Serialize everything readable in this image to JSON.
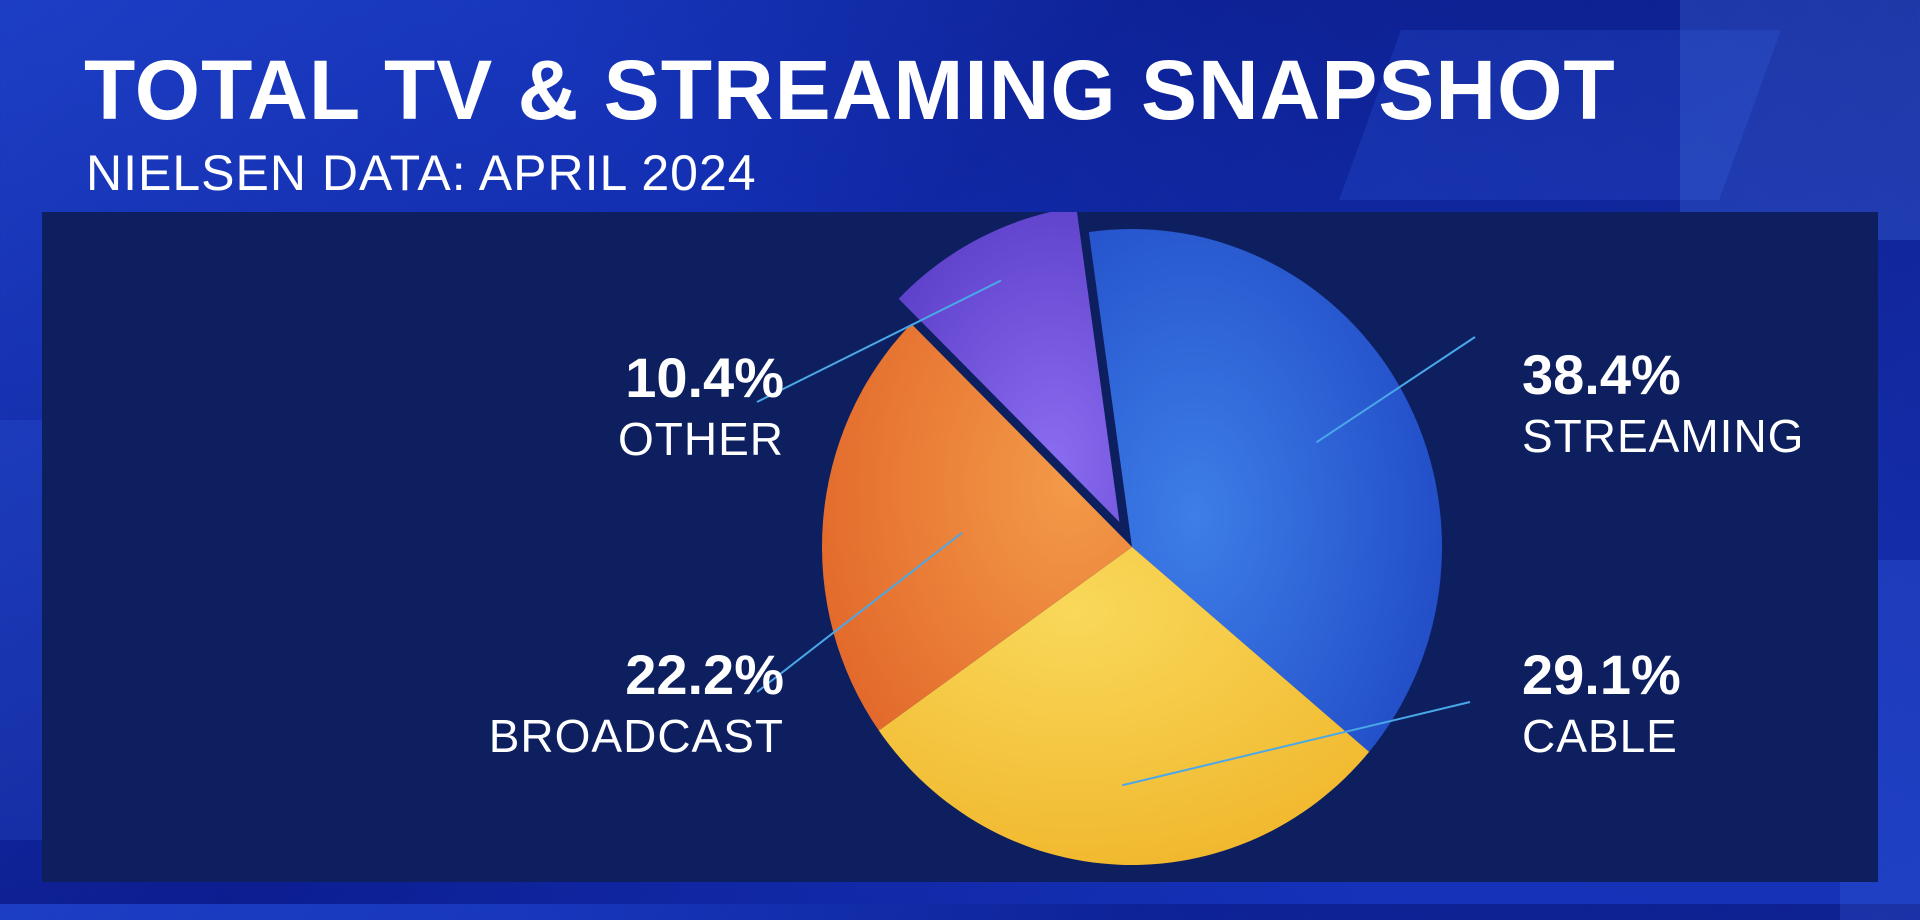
{
  "header": {
    "title": "TOTAL TV & STREAMING SNAPSHOT",
    "subtitle": "NIELSEN DATA: APRIL 2024"
  },
  "colors": {
    "streaming": "#2f6ae0",
    "cable": "#f5c842",
    "broadcast": "#ee7f32",
    "other": "#7a5ce0",
    "leader_line": "#4aa8e8",
    "panel": "#0d1f5e"
  },
  "chart_data": {
    "type": "pie",
    "title": "TOTAL TV & STREAMING SNAPSHOT",
    "subtitle": "NIELSEN DATA: APRIL 2024",
    "slices": [
      {
        "label": "STREAMING",
        "value": 38.4,
        "pct_label": "38.4%",
        "color": "#2f6ae0",
        "exploded": false
      },
      {
        "label": "CABLE",
        "value": 29.1,
        "pct_label": "29.1%",
        "color": "#f5c842",
        "exploded": false
      },
      {
        "label": "BROADCAST",
        "value": 22.2,
        "pct_label": "22.2%",
        "color": "#ee7f32",
        "exploded": false
      },
      {
        "label": "OTHER",
        "value": 10.4,
        "pct_label": "10.4%",
        "color": "#7a5ce0",
        "exploded": true
      }
    ]
  }
}
